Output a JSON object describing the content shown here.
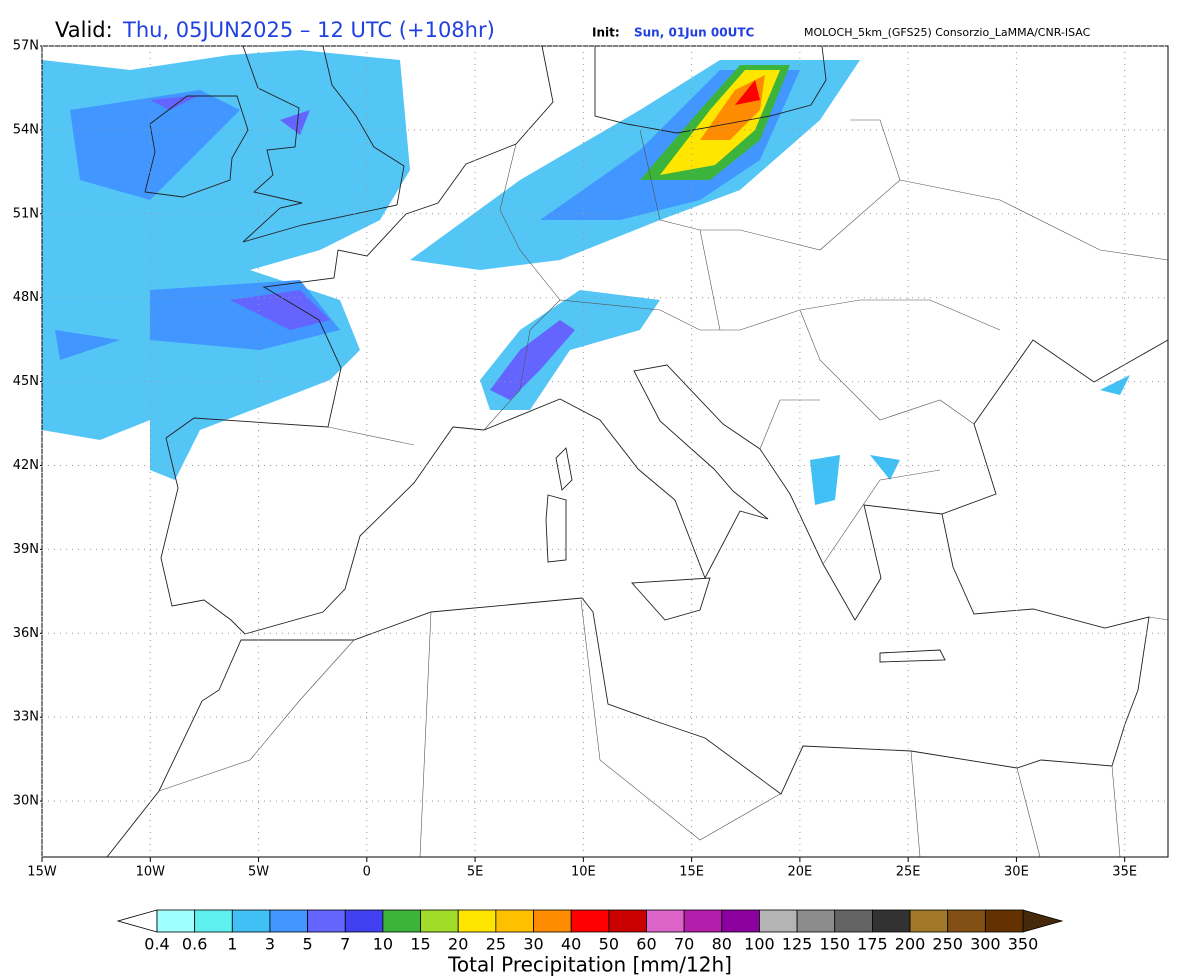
{
  "header": {
    "valid_label": "Valid:",
    "valid_time": "Thu, 05JUN2025 – 12 UTC (+108hr)",
    "init_label": "Init:",
    "init_time": "Sun, 01Jun 00UTC",
    "model": "MOLOCH_5km_(GFS25) Consorzio_LaMMA/CNR-ISAC"
  },
  "map": {
    "xlim": [
      -15,
      37
    ],
    "ylim": [
      28,
      57
    ],
    "grid": true,
    "xticks": [
      {
        "value": -15,
        "label": "15W"
      },
      {
        "value": -10,
        "label": "10W"
      },
      {
        "value": -5,
        "label": "5W"
      },
      0,
      {
        "value": 5,
        "label": "5E"
      },
      {
        "value": 10,
        "label": "10E"
      },
      {
        "value": 15,
        "label": "15E"
      },
      {
        "value": 20,
        "label": "20E"
      },
      {
        "value": 25,
        "label": "25E"
      },
      {
        "value": 30,
        "label": "30E"
      },
      {
        "value": 35,
        "label": "35E"
      }
    ],
    "yticks": [
      {
        "value": 30,
        "label": "30N"
      },
      {
        "value": 33,
        "label": "33N"
      },
      {
        "value": 36,
        "label": "36N"
      },
      {
        "value": 39,
        "label": "39N"
      },
      {
        "value": 42,
        "label": "42N"
      },
      {
        "value": 45,
        "label": "45N"
      },
      {
        "value": 48,
        "label": "48N"
      },
      {
        "value": 51,
        "label": "51N"
      },
      {
        "value": 54,
        "label": "54N"
      },
      {
        "value": 57,
        "label": "57N"
      }
    ]
  },
  "colorbar": {
    "title": "Total Precipitation [mm/12h]",
    "levels": [
      0.4,
      0.6,
      1,
      3,
      5,
      7,
      10,
      15,
      20,
      25,
      30,
      40,
      50,
      60,
      70,
      80,
      100,
      125,
      150,
      175,
      200,
      250,
      300,
      350
    ],
    "colors": [
      "#a0ffff",
      "#5ff0f0",
      "#40c0f5",
      "#4196ff",
      "#6464ff",
      "#4040f0",
      "#3cb43c",
      "#a0dc28",
      "#ffe600",
      "#ffc000",
      "#ff8c00",
      "#ff0000",
      "#c80000",
      "#dc64c8",
      "#b41eaa",
      "#8c00a0",
      "#b4b4b4",
      "#8c8c8c",
      "#646464",
      "#323232",
      "#a07828",
      "#825014",
      "#643200"
    ],
    "under_color": "#ffffff",
    "over_color": "#46280a"
  }
}
